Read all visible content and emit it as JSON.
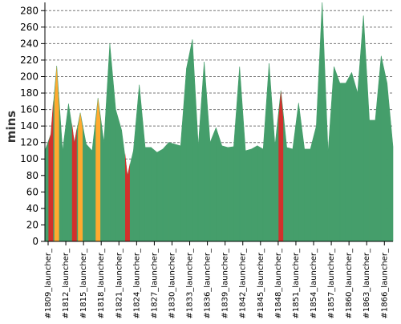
{
  "chart_data": {
    "type": "area",
    "ylabel": "mins",
    "ylim": [
      0,
      290
    ],
    "yticks": [
      0,
      20,
      40,
      60,
      80,
      100,
      120,
      140,
      160,
      180,
      200,
      220,
      240,
      260,
      280
    ],
    "grid": "horizontal-dashed",
    "x": [
      1809,
      1810,
      1811,
      1812,
      1813,
      1814,
      1815,
      1816,
      1817,
      1818,
      1819,
      1820,
      1821,
      1822,
      1823,
      1824,
      1825,
      1826,
      1827,
      1828,
      1829,
      1830,
      1831,
      1832,
      1833,
      1834,
      1835,
      1836,
      1837,
      1838,
      1839,
      1840,
      1841,
      1842,
      1843,
      1844,
      1845,
      1846,
      1847,
      1848,
      1849,
      1850,
      1851,
      1852,
      1853,
      1854,
      1855,
      1856,
      1857,
      1858,
      1859,
      1860,
      1861,
      1862,
      1863,
      1864,
      1865,
      1866,
      1867,
      1868
    ],
    "tick_labels": [
      "#1809_launcher_",
      "#1812_launcher_",
      "#1815_launcher_",
      "#1818_launcher_",
      "#1821_launcher_",
      "#1824_launcher_",
      "#1827_launcher_",
      "#1830_launcher_",
      "#1833_launcher_",
      "#1836_launcher_",
      "#1839_launcher_",
      "#1842_launcher_",
      "#1845_launcher_",
      "#1848_launcher_",
      "#1851_launcher_",
      "#1854_launcher_",
      "#1857_launcher_",
      "#1860_launcher_",
      "#1863_launcher_",
      "#1866_launcher_"
    ],
    "values": [
      110,
      130,
      213,
      110,
      167,
      120,
      156,
      118,
      110,
      174,
      120,
      240,
      160,
      135,
      80,
      110,
      190,
      114,
      114,
      108,
      112,
      120,
      118,
      116,
      210,
      245,
      116,
      218,
      120,
      138,
      116,
      114,
      115,
      212,
      110,
      112,
      116,
      112,
      216,
      116,
      183,
      114,
      112,
      168,
      112,
      112,
      140,
      290,
      108,
      212,
      192,
      192,
      205,
      180,
      274,
      147,
      147,
      225,
      192,
      115
    ],
    "statuses": [
      "success",
      "failure",
      "unstable",
      "success",
      "success",
      "failure",
      "unstable",
      "success",
      "success",
      "unstable",
      "success",
      "success",
      "success",
      "success",
      "failure",
      "success",
      "success",
      "success",
      "success",
      "success",
      "success",
      "success",
      "success",
      "success",
      "success",
      "success",
      "success",
      "success",
      "success",
      "success",
      "success",
      "success",
      "success",
      "success",
      "success",
      "success",
      "success",
      "success",
      "success",
      "success",
      "failure",
      "success",
      "success",
      "success",
      "success",
      "success",
      "success",
      "success",
      "success",
      "success",
      "success",
      "success",
      "success",
      "success",
      "success",
      "success",
      "success",
      "success",
      "success",
      "success"
    ],
    "colors": {
      "success": "#459e6b",
      "failure": "#d2302c",
      "unstable": "#ffaa2f",
      "grid": "#777777",
      "axis": "#000000"
    }
  }
}
